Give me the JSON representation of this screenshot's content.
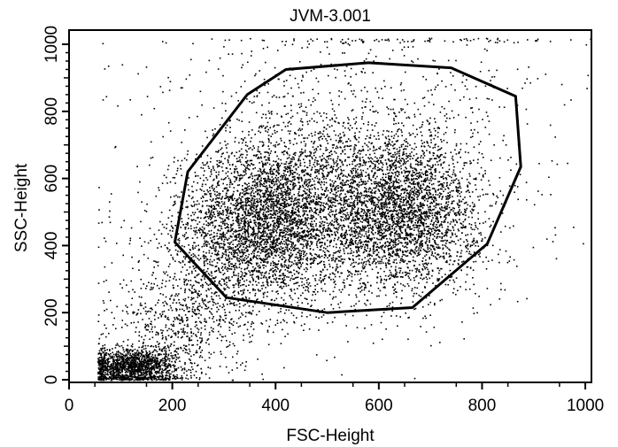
{
  "chart_data": {
    "type": "scatter",
    "title": "JVM-3.001",
    "xlabel": "FSC-Height",
    "ylabel": "SSC-Height",
    "xlim": [
      0,
      1024
    ],
    "ylim": [
      0,
      1024
    ],
    "x_ticks": [
      {
        "value": 0,
        "label": "0"
      },
      {
        "value": 200,
        "label": "200"
      },
      {
        "value": 400,
        "label": "400"
      },
      {
        "value": 600,
        "label": "600"
      },
      {
        "value": 800,
        "label": "800"
      },
      {
        "value": 1000,
        "label": "1000"
      }
    ],
    "y_ticks": [
      {
        "value": 0,
        "label": "0"
      },
      {
        "value": 200,
        "label": "200"
      },
      {
        "value": 400,
        "label": "400"
      },
      {
        "value": 600,
        "label": "600"
      },
      {
        "value": 800,
        "label": "800"
      },
      {
        "value": 1000,
        "label": "1000"
      }
    ],
    "grid": false,
    "gate_polygon": [
      [
        205,
        410
      ],
      [
        230,
        620
      ],
      [
        345,
        850
      ],
      [
        420,
        925
      ],
      [
        580,
        945
      ],
      [
        740,
        930
      ],
      [
        865,
        845
      ],
      [
        875,
        635
      ],
      [
        810,
        405
      ],
      [
        665,
        215
      ],
      [
        500,
        200
      ],
      [
        305,
        245
      ]
    ],
    "point_clusters": [
      {
        "cx": 380,
        "cy": 480,
        "sx": 75,
        "sy": 110,
        "n": 2700
      },
      {
        "cx": 640,
        "cy": 500,
        "sx": 75,
        "sy": 110,
        "n": 2700
      },
      {
        "cx": 520,
        "cy": 540,
        "sx": 150,
        "sy": 160,
        "n": 2400
      },
      {
        "cx": 300,
        "cy": 320,
        "sx": 90,
        "sy": 110,
        "n": 700
      },
      {
        "cx": 120,
        "cy": 40,
        "sx": 45,
        "sy": 28,
        "n": 1500
      },
      {
        "cx": 200,
        "cy": 150,
        "sx": 70,
        "sy": 80,
        "n": 500
      },
      {
        "cx": 560,
        "cy": 880,
        "sx": 200,
        "sy": 100,
        "n": 300
      },
      {
        "cx": 650,
        "cy": 1015,
        "sx": 200,
        "sy": 6,
        "n": 120
      }
    ],
    "colors": {
      "points": "#000000",
      "gate": "#000000",
      "axes": "#000000"
    }
  }
}
